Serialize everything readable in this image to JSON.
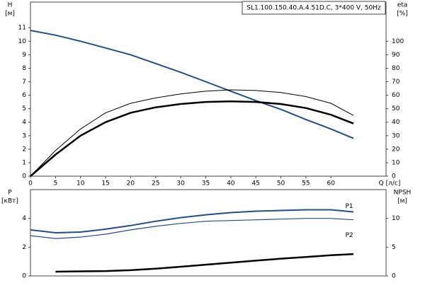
{
  "chart_data": [
    {
      "type": "line",
      "title": "SL1.100.150.40.A.4.51D.C, 3*400 V, 50Hz",
      "ylabel": "H",
      "ylabel_unit": "[м]",
      "y2label": "eta",
      "y2label_unit": "[%]",
      "xlabel": "Q [л/с]",
      "x": [
        0,
        5,
        10,
        15,
        20,
        25,
        30,
        35,
        40,
        45,
        50,
        55,
        60,
        64.5
      ],
      "xlim": [
        0,
        71
      ],
      "xticks": [
        0,
        5,
        10,
        15,
        20,
        25,
        30,
        35,
        40,
        45,
        50,
        55,
        60
      ],
      "ylim": [
        0,
        12.9
      ],
      "yticks": [
        0,
        1,
        2,
        3,
        4,
        5,
        6,
        7,
        8,
        9,
        10,
        11
      ],
      "y2lim": [
        0,
        129
      ],
      "y2ticks": [
        0,
        10,
        20,
        30,
        40,
        50,
        60,
        70,
        80,
        90,
        100
      ],
      "series": [
        {
          "color": "#1f4e8c",
          "linewidth": 2,
          "values": [
            10.8,
            10.45,
            10.0,
            9.5,
            9.0,
            8.35,
            7.7,
            7.0,
            6.3,
            5.6,
            4.95,
            4.2,
            3.5,
            2.8
          ]
        },
        {
          "color": "#000000",
          "linewidth": 1,
          "axis": "y2",
          "values": [
            0,
            19,
            35,
            47,
            54,
            58,
            61,
            63,
            64,
            63.5,
            62,
            59,
            54,
            45
          ]
        },
        {
          "color": "#000000",
          "linewidth": 2.5,
          "axis": "y2",
          "values": [
            0,
            16,
            30,
            40,
            47,
            51,
            53.5,
            55,
            55.5,
            55,
            53.5,
            50.5,
            45.5,
            39
          ]
        }
      ]
    },
    {
      "type": "line",
      "ylabel": "P",
      "ylabel_unit": "[кВт]",
      "y2label": "NPSH",
      "y2label_unit": "[м]",
      "x": [
        0,
        5,
        10,
        15,
        20,
        25,
        30,
        35,
        40,
        45,
        50,
        55,
        60,
        64.5
      ],
      "xlim": [
        0,
        71
      ],
      "ylim": [
        0,
        6
      ],
      "yticks": [
        0,
        2,
        4
      ],
      "y2lim": [
        0,
        15
      ],
      "y2ticks": [
        0,
        5,
        10
      ],
      "series": [
        {
          "name": "P1",
          "color": "#1f4e8c",
          "linewidth": 2,
          "values": [
            3.2,
            3.0,
            3.05,
            3.25,
            3.5,
            3.8,
            4.05,
            4.25,
            4.4,
            4.5,
            4.55,
            4.6,
            4.6,
            4.45
          ]
        },
        {
          "name": "P2",
          "color": "#1f4e8c",
          "linewidth": 1.2,
          "values": [
            2.8,
            2.6,
            2.7,
            2.9,
            3.2,
            3.45,
            3.65,
            3.8,
            3.85,
            3.9,
            3.95,
            4.0,
            4.0,
            3.9
          ]
        },
        {
          "color": "#000000",
          "linewidth": 2.5,
          "axis": "y2",
          "values": [
            null,
            0.74,
            0.8,
            0.85,
            1.0,
            1.25,
            1.6,
            1.95,
            2.3,
            2.65,
            3.0,
            3.3,
            3.6,
            3.8
          ]
        }
      ]
    }
  ]
}
